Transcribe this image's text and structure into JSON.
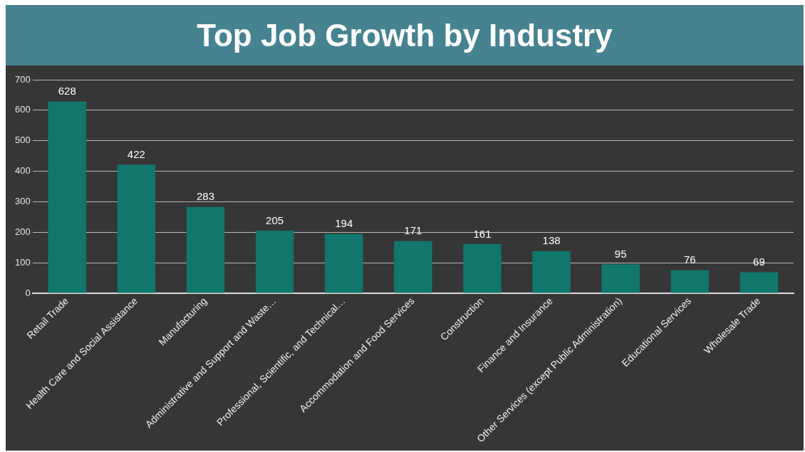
{
  "chart_data": {
    "type": "bar",
    "title": "Top Job Growth by Industry",
    "categories": [
      "Retail Trade",
      "Health Care and Social Assistance",
      "Manufacturing",
      "Administrative and Support and Waste…",
      "Professional, Scientific, and Technical…",
      "Accommodation and Food Services",
      "Construction",
      "Finance and Insurance",
      "Other Services (except Public Administration)",
      "Educational Services",
      "Wholesale Trade"
    ],
    "values": [
      628,
      422,
      283,
      205,
      194,
      171,
      161,
      138,
      95,
      76,
      69
    ],
    "color": "#11776d",
    "ylim": [
      0,
      700
    ],
    "yticks": [
      0,
      100,
      200,
      300,
      400,
      500,
      600,
      700
    ],
    "grid": "y",
    "data_labels": true,
    "legend": false
  }
}
